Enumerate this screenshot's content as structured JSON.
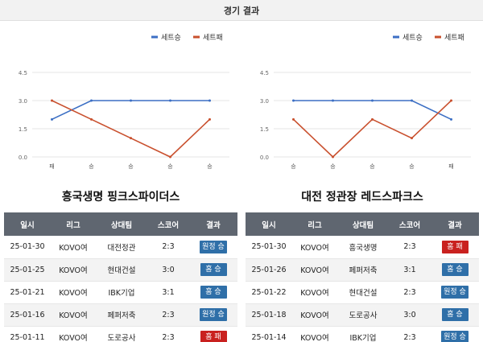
{
  "header": {
    "title": "경기 결과"
  },
  "legend": {
    "win_label": "세트승",
    "loss_label": "세트패",
    "win_color": "#3c6fc4",
    "loss_color": "#c9502e"
  },
  "table_headers": [
    "일시",
    "리그",
    "상대팀",
    "스코어",
    "결과"
  ],
  "result_colors": {
    "홈 승": "#2f6fa8",
    "원정 승": "#2f6fa8",
    "홈 패": "#c9211f"
  },
  "left": {
    "team_name": "흥국생명 핑크스파이더스",
    "rows": [
      {
        "date": "25-01-30",
        "league": "KOVO여",
        "opponent": "대전정관",
        "score": "2:3",
        "result": "원정 승",
        "result_type": "away"
      },
      {
        "date": "25-01-25",
        "league": "KOVO여",
        "opponent": "현대건설",
        "score": "3:0",
        "result": "홈 승",
        "result_type": "home"
      },
      {
        "date": "25-01-21",
        "league": "KOVO여",
        "opponent": "IBK기업",
        "score": "3:1",
        "result": "홈 승",
        "result_type": "home"
      },
      {
        "date": "25-01-16",
        "league": "KOVO여",
        "opponent": "페퍼저축",
        "score": "2:3",
        "result": "원정 승",
        "result_type": "away"
      },
      {
        "date": "25-01-11",
        "league": "KOVO여",
        "opponent": "도로공사",
        "score": "2:3",
        "result": "홈 패",
        "result_type": "loss"
      }
    ]
  },
  "right": {
    "team_name": "대전 정관장 레드스파크스",
    "rows": [
      {
        "date": "25-01-30",
        "league": "KOVO여",
        "opponent": "흥국생명",
        "score": "2:3",
        "result": "홈 패",
        "result_type": "loss"
      },
      {
        "date": "25-01-26",
        "league": "KOVO여",
        "opponent": "페퍼저축",
        "score": "3:1",
        "result": "홈 승",
        "result_type": "home"
      },
      {
        "date": "25-01-22",
        "league": "KOVO여",
        "opponent": "현대건설",
        "score": "2:3",
        "result": "원정 승",
        "result_type": "away"
      },
      {
        "date": "25-01-18",
        "league": "KOVO여",
        "opponent": "도로공사",
        "score": "3:0",
        "result": "홈 승",
        "result_type": "home"
      },
      {
        "date": "25-01-14",
        "league": "KOVO여",
        "opponent": "IBK기업",
        "score": "2:3",
        "result": "원정 승",
        "result_type": "away"
      }
    ]
  },
  "chart_data": [
    {
      "type": "line",
      "categories": [
        "패",
        "승",
        "승",
        "승",
        "승"
      ],
      "ylim": [
        0,
        4.5
      ],
      "yticks": [
        "0.0",
        "1.5",
        "3.0",
        "4.5"
      ],
      "series": [
        {
          "name": "세트승",
          "values": [
            2,
            3,
            3,
            3,
            3
          ]
        },
        {
          "name": "세트패",
          "values": [
            3,
            2,
            1,
            0,
            2
          ]
        }
      ]
    },
    {
      "type": "line",
      "categories": [
        "승",
        "승",
        "승",
        "승",
        "패"
      ],
      "ylim": [
        0,
        4.5
      ],
      "yticks": [
        "0.0",
        "1.5",
        "3.0",
        "4.5"
      ],
      "series": [
        {
          "name": "세트승",
          "values": [
            3,
            3,
            3,
            3,
            2
          ]
        },
        {
          "name": "세트패",
          "values": [
            2,
            0,
            2,
            1,
            3
          ]
        }
      ]
    }
  ]
}
